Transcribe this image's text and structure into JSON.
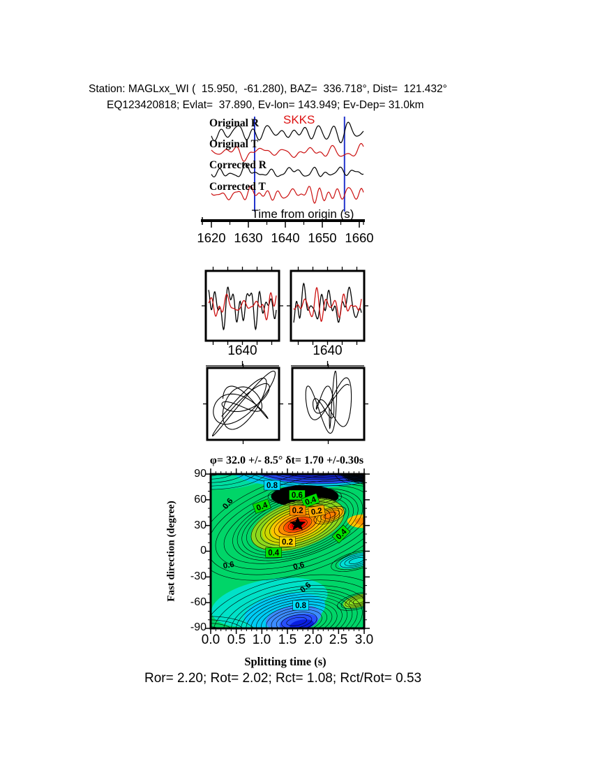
{
  "header": {
    "line1": "Station: MAGLxx_WI (  15.950,  -61.280), BAZ=  336.718°, Dist=  121.432°",
    "line2": "EQ123420818; Evlat=  37.890, Ev-lon= 143.949; Ev-Dep= 31.0km"
  },
  "trace_panel": {
    "phase_label": "SKKS",
    "phase_color": "#dd1111",
    "window_marker_color": "#2233cc",
    "window_markers_s": [
      1631.7,
      1656.0
    ],
    "traces": [
      {
        "label": "Original R",
        "color": "#000000"
      },
      {
        "label": "Original T",
        "color": "#cc1111"
      },
      {
        "label": "Corrected R",
        "color": "#000000"
      },
      {
        "label": "Corrected T",
        "color": "#cc1111"
      }
    ],
    "axis_label": "Time from origin (s)",
    "tick_labels": [
      "1620",
      "1630",
      "1640",
      "1650",
      "1660"
    ],
    "tick_values": [
      1620,
      1630,
      1640,
      1650,
      1660
    ]
  },
  "window_panels": {
    "left": {
      "tick_label": "1640",
      "trace_colors": [
        "#000000",
        "#cc1111"
      ]
    },
    "right": {
      "tick_label": "1640",
      "trace_colors": [
        "#000000",
        "#cc1111"
      ]
    }
  },
  "particle_panels": {
    "trace_color": "#000000"
  },
  "contour_panel": {
    "title": "φ= 32.0 +/- 8.5° δt= 1.70 +/-0.30s",
    "ylabel": "Fast direction (degree)",
    "xlabel": "Splitting time (s)",
    "x_tick_labels": [
      "0.0",
      "0.5",
      "1.0",
      "1.5",
      "2.0",
      "2.5",
      "3.0"
    ],
    "y_tick_labels": [
      "90",
      "60",
      "30",
      "0",
      "-30",
      "-60",
      "-90"
    ]
  },
  "footer": {
    "result_line": "Ror= 2.20; Rot= 2.02; Rct= 1.08; Rct/Rot= 0.53"
  },
  "chart_data": {
    "type": "heatmap",
    "title": "φ= 32.0 +/- 8.5° δt= 1.70 +/-0.30s",
    "xlabel": "Splitting time (s)",
    "ylabel": "Fast direction (degree)",
    "xlim": [
      0.0,
      3.0
    ],
    "ylim": [
      -90,
      90
    ],
    "x_major_tick": 0.5,
    "x_minor_tick": 0.1,
    "y_major_tick": 30,
    "y_minor_tick": 10,
    "grid": false,
    "best_fit": {
      "fast_direction_deg": 32.0,
      "fast_direction_err_deg": 8.5,
      "splitting_time_s": 1.7,
      "splitting_time_err_s": 0.3
    },
    "star": {
      "x": 1.7,
      "y": 31.5
    },
    "contour_levels_labeled": [
      0.2,
      0.4,
      0.6,
      0.8
    ],
    "field_color": "#00d568",
    "regions": [
      {
        "cx": 0.1,
        "cy": 92,
        "rx": 1.05,
        "ry": 20,
        "rot": 0,
        "color": "#00dca0"
      },
      {
        "cx": 1.9,
        "cy": 93,
        "rx": 1.45,
        "ry": 19,
        "rot": 0,
        "color": "#00c8e8"
      },
      {
        "cx": 2.15,
        "cy": 96,
        "rx": 1.3,
        "ry": 17,
        "rot": 0,
        "color": "#2446e8"
      },
      {
        "cx": 2.3,
        "cy": 97,
        "rx": 1.15,
        "ry": 13,
        "rot": 0,
        "color": "#1020c0"
      },
      {
        "cx": 3.05,
        "cy": 92,
        "rx": 0.5,
        "ry": 12,
        "rot": 0,
        "color": "#000818"
      },
      {
        "cx": 1.84,
        "cy": 64,
        "rx": 0.66,
        "ry": 13,
        "rot": 0,
        "color": "#000000"
      },
      {
        "cx": 1.7,
        "cy": 31,
        "rx": 0.95,
        "ry": 27,
        "rot": -18,
        "color": "#8cd81c"
      },
      {
        "cx": 1.7,
        "cy": 31,
        "rx": 0.72,
        "ry": 20.5,
        "rot": -18,
        "color": "#ccd800"
      },
      {
        "cx": 1.7,
        "cy": 31,
        "rx": 0.54,
        "ry": 15.5,
        "rot": -18,
        "color": "#ffc400"
      },
      {
        "cx": 1.7,
        "cy": 31,
        "rx": 0.4,
        "ry": 11.5,
        "rot": -18,
        "color": "#ff8c00"
      },
      {
        "cx": 1.7,
        "cy": 31,
        "rx": 0.27,
        "ry": 7.8,
        "rot": -18,
        "color": "#ff4800"
      },
      {
        "cx": 1.7,
        "cy": 31,
        "rx": 0.16,
        "ry": 4.6,
        "rot": -18,
        "color": "#ff0000"
      },
      {
        "cx": 2.33,
        "cy": 42,
        "rx": 0.3,
        "ry": 7.5,
        "rot": -20,
        "color": "#ffb400"
      },
      {
        "cx": 2.33,
        "cy": 42,
        "rx": 0.16,
        "ry": 4.0,
        "rot": -20,
        "color": "#ff8000"
      },
      {
        "cx": 3.0,
        "cy": 35,
        "rx": 0.33,
        "ry": 8.0,
        "rot": 0,
        "color": "#ffc400"
      },
      {
        "cx": 3.0,
        "cy": 35,
        "rx": 0.18,
        "ry": 4.5,
        "rot": 0,
        "color": "#ff9000"
      },
      {
        "cx": 1.15,
        "cy": -60,
        "rx": 1.15,
        "ry": 27,
        "rot": -10,
        "color": "#00e2c8"
      },
      {
        "cx": 1.45,
        "cy": -70,
        "rx": 0.8,
        "ry": 20,
        "rot": -10,
        "color": "#00ccf4"
      },
      {
        "cx": 1.62,
        "cy": -78,
        "rx": 0.55,
        "ry": 14,
        "rot": -10,
        "color": "#3c8cff"
      },
      {
        "cx": 1.72,
        "cy": -83,
        "rx": 0.38,
        "ry": 9.5,
        "rot": -10,
        "color": "#2850ff"
      },
      {
        "cx": 1.78,
        "cy": -86,
        "rx": 0.24,
        "ry": 6.0,
        "rot": -10,
        "color": "#0a1ee0"
      },
      {
        "cx": 2.85,
        "cy": -11,
        "rx": 0.36,
        "ry": 8.0,
        "rot": -15,
        "color": "#00e0d8"
      },
      {
        "cx": 2.9,
        "cy": -58,
        "rx": 0.32,
        "ry": 7.0,
        "rot": -15,
        "color": "#8ce01e"
      }
    ],
    "contour_sets": [
      {
        "cx": 1.7,
        "cy": 31,
        "rot": -18,
        "n": 14,
        "rx0": 0.1,
        "drx": 0.094,
        "ry0": 2.8,
        "dry": 2.55
      },
      {
        "cx": 1.7,
        "cy": 31,
        "rot": -18,
        "n": 4,
        "rx0": 1.5,
        "drx": 0.17,
        "ry0": 38,
        "dry": 6
      },
      {
        "cx": 2.33,
        "cy": 42,
        "rot": -20,
        "n": 4,
        "rx0": 0.12,
        "drx": 0.07,
        "ry0": 3.0,
        "dry": 1.8
      },
      {
        "cx": 1.84,
        "cy": 64,
        "rot": 0,
        "n": 5,
        "rx0": 0.2,
        "drx": 0.13,
        "ry0": 3.2,
        "dry": 2.1
      },
      {
        "cx": 2.1,
        "cy": 99,
        "rot": 0,
        "n": 6,
        "rx0": 0.75,
        "drx": 0.17,
        "ry0": 10,
        "dry": 2.6
      },
      {
        "cx": -0.05,
        "cy": 98,
        "rot": 0,
        "n": 5,
        "rx0": 0.4,
        "drx": 0.2,
        "ry0": 10,
        "dry": 4
      },
      {
        "cx": 3.1,
        "cy": 92,
        "rot": 0,
        "n": 5,
        "rx0": 0.2,
        "drx": 0.12,
        "ry0": 5.0,
        "dry": 2.8
      },
      {
        "cx": 1.68,
        "cy": -82,
        "rot": -10,
        "n": 12,
        "rx0": 0.2,
        "drx": 0.1,
        "ry0": 4.5,
        "dry": 2.9
      },
      {
        "cx": 1.68,
        "cy": -82,
        "rot": -10,
        "n": 3,
        "rx0": 1.45,
        "drx": 0.2,
        "ry0": 40,
        "dry": 6
      },
      {
        "cx": 2.85,
        "cy": -11,
        "rot": -15,
        "n": 5,
        "rx0": 0.15,
        "drx": 0.09,
        "ry0": 3.0,
        "dry": 1.8
      },
      {
        "cx": 2.9,
        "cy": -58,
        "rot": -15,
        "n": 5,
        "rx0": 0.12,
        "drx": 0.08,
        "ry0": 2.6,
        "dry": 1.6
      },
      {
        "cx": -0.05,
        "cy": -97,
        "rot": 0,
        "n": 4,
        "rx0": 0.35,
        "drx": 0.2,
        "ry0": 9,
        "dry": 4
      }
    ],
    "labels": [
      {
        "text": "0.8",
        "x": 1.2,
        "y": 77.0,
        "box": "#00d8ff",
        "rot": 0
      },
      {
        "text": "0.6",
        "x": 1.69,
        "y": 65.6,
        "box": "#00e000",
        "rot": 0
      },
      {
        "text": "0.4",
        "x": 1.95,
        "y": 59.0,
        "box": "#00e000",
        "rot": -20
      },
      {
        "text": "0.4",
        "x": 1.0,
        "y": 52.5,
        "box": "#00e000",
        "rot": -20
      },
      {
        "text": "0.2",
        "x": 1.7,
        "y": 47.6,
        "box": "#ff8800",
        "rot": 0
      },
      {
        "text": "0.2",
        "x": 2.07,
        "y": 46.8,
        "box": "#ffaa00",
        "rot": -10
      },
      {
        "text": "0.4",
        "x": 2.55,
        "y": 20.0,
        "box": "#00e000",
        "rot": -45
      },
      {
        "text": "0.2",
        "x": 1.5,
        "y": 11.0,
        "box": "#ffd000",
        "rot": 0
      },
      {
        "text": "0.4",
        "x": 1.23,
        "y": -1.5,
        "box": "#00e000",
        "rot": 0
      },
      {
        "text": "0.6",
        "x": 0.33,
        "y": 55.8,
        "box": null,
        "rot": -50
      },
      {
        "text": "0.6",
        "x": 0.35,
        "y": -15.9,
        "box": null,
        "rot": -10
      },
      {
        "text": "0.6",
        "x": 1.72,
        "y": -16.7,
        "box": null,
        "rot": -15
      },
      {
        "text": "0.6",
        "x": 1.85,
        "y": -42.0,
        "box": null,
        "rot": -40
      },
      {
        "text": "0.8",
        "x": 1.76,
        "y": -63.1,
        "box": "#00e0ff",
        "rot": 0
      }
    ]
  }
}
